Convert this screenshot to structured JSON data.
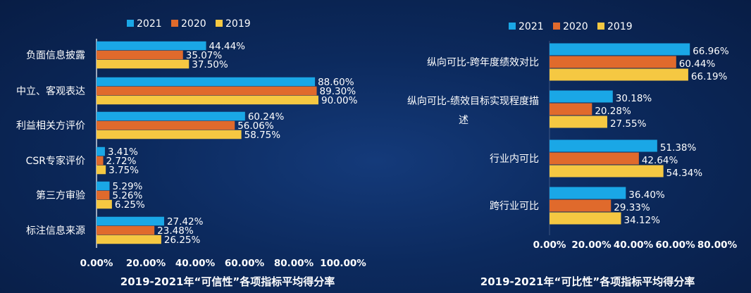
{
  "colors": {
    "2021": "#1aa7e6",
    "2020": "#e06a2c",
    "2019": "#f5c842"
  },
  "chart_data": [
    {
      "type": "bar",
      "orientation": "horizontal",
      "title": "2019-2021年“可信性”各项指标平均得分率",
      "legend": [
        "2021",
        "2020",
        "2019"
      ],
      "legend_position": "top",
      "categories": [
        "负面信息披露",
        "中立、客观表达",
        "利益相关方评价",
        "CSR专家评价",
        "第三方审验",
        "标注信息来源"
      ],
      "series": [
        {
          "name": "2021",
          "values": [
            44.44,
            88.6,
            60.24,
            3.41,
            5.29,
            27.42
          ],
          "labels": [
            "44.44%",
            "88.60%",
            "60.24%",
            "3.41%",
            "5.29%",
            "27.42%"
          ]
        },
        {
          "name": "2020",
          "values": [
            35.07,
            89.3,
            56.06,
            2.72,
            5.26,
            23.48
          ],
          "labels": [
            "35.07%",
            "89.30%",
            "56.06%",
            "2.72%",
            "5.26%",
            "23.48%"
          ]
        },
        {
          "name": "2019",
          "values": [
            37.5,
            90.0,
            58.75,
            3.75,
            6.25,
            26.25
          ],
          "labels": [
            "37.50%",
            "90.00%",
            "58.75%",
            "3.75%",
            "6.25%",
            "26.25%"
          ]
        }
      ],
      "xlim": [
        0,
        100
      ],
      "ticks": [
        "0.00%",
        "20.00%",
        "40.00%",
        "60.00%",
        "80.00%",
        "100.00%"
      ]
    },
    {
      "type": "bar",
      "orientation": "horizontal",
      "title": "2019-2021年“可比性”各项指标平均得分率",
      "legend": [
        "2021",
        "2020",
        "2019"
      ],
      "legend_position": "top",
      "categories": [
        "纵向可比-跨年度绩效对比",
        "纵向可比-绩效目标实现程度描述",
        "行业内可比",
        "跨行业可比"
      ],
      "category_lines": [
        [
          "纵向可比-跨年度绩效对比"
        ],
        [
          "纵向可比-绩效目标实现程度描",
          "述"
        ],
        [
          "行业内可比"
        ],
        [
          "跨行业可比"
        ]
      ],
      "series": [
        {
          "name": "2021",
          "values": [
            66.96,
            30.18,
            51.38,
            36.4
          ],
          "labels": [
            "66.96%",
            "30.18%",
            "51.38%",
            "36.40%"
          ]
        },
        {
          "name": "2020",
          "values": [
            60.44,
            20.28,
            42.64,
            29.33
          ],
          "labels": [
            "60.44%",
            "20.28%",
            "42.64%",
            "29.33%"
          ]
        },
        {
          "name": "2019",
          "values": [
            66.19,
            27.55,
            54.34,
            34.12
          ],
          "labels": [
            "66.19%",
            "27.55%",
            "54.34%",
            "34.12%"
          ]
        }
      ],
      "xlim": [
        0,
        80
      ],
      "ticks": [
        "0.00%",
        "20.00%",
        "40.00%",
        "60.00%",
        "80.00%"
      ]
    }
  ]
}
